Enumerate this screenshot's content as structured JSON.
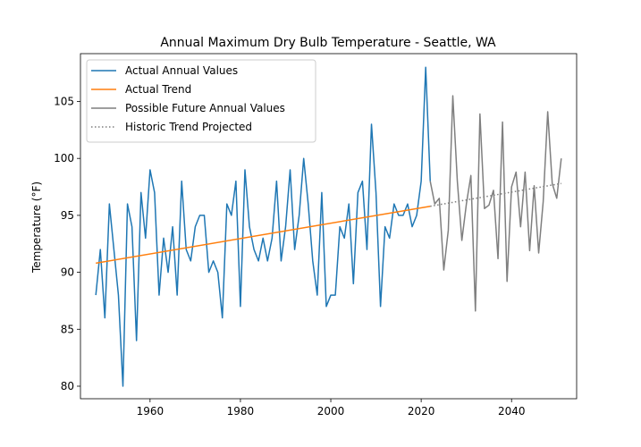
{
  "chart_data": {
    "type": "line",
    "title": "Annual Maximum Dry Bulb Temperature - Seattle, WA",
    "xlabel": "",
    "ylabel": "Temperature (°F)",
    "xlim": [
      1944.6,
      2054.4
    ],
    "ylim": [
      78.9,
      109.2
    ],
    "xticks": [
      1960,
      1980,
      2000,
      2020,
      2040
    ],
    "yticks": [
      80,
      85,
      90,
      95,
      100,
      105
    ],
    "grid": false,
    "legend_position": "top-left",
    "series": [
      {
        "name": "Actual Annual Values",
        "color": "#1f77b4",
        "style": "solid",
        "x": [
          1948,
          1949,
          1950,
          1951,
          1952,
          1953,
          1954,
          1955,
          1956,
          1957,
          1958,
          1959,
          1960,
          1961,
          1962,
          1963,
          1964,
          1965,
          1966,
          1967,
          1968,
          1969,
          1970,
          1971,
          1972,
          1973,
          1974,
          1975,
          1976,
          1977,
          1978,
          1979,
          1980,
          1981,
          1982,
          1983,
          1984,
          1985,
          1986,
          1987,
          1988,
          1989,
          1990,
          1991,
          1992,
          1993,
          1994,
          1995,
          1996,
          1997,
          1998,
          1999,
          2000,
          2001,
          2002,
          2003,
          2004,
          2005,
          2006,
          2007,
          2008,
          2009,
          2010,
          2011,
          2012,
          2013,
          2014,
          2015,
          2016,
          2017,
          2018,
          2019,
          2020,
          2021,
          2022
        ],
        "y": [
          88,
          92,
          86,
          96,
          92,
          88,
          80,
          96,
          94,
          84,
          97,
          93,
          99,
          97,
          88,
          93,
          90,
          94,
          88,
          98,
          92,
          91,
          94,
          95,
          95,
          90,
          91,
          90,
          86,
          96,
          95,
          98,
          87,
          99,
          94,
          92,
          91,
          93,
          91,
          93,
          98,
          91,
          94,
          99,
          92,
          95,
          100,
          96,
          91,
          88,
          97,
          87,
          88,
          88,
          94,
          93,
          96,
          89,
          97,
          98,
          92,
          103,
          97,
          87,
          94,
          93,
          96,
          95,
          95,
          96,
          94,
          95,
          98,
          108,
          98
        ]
      },
      {
        "name": "Actual Trend",
        "color": "#ff7f0e",
        "style": "solid",
        "x": [
          1948,
          2022
        ],
        "y": [
          90.8,
          95.8
        ]
      },
      {
        "name": "Possible Future Annual Values",
        "color": "#7f7f7f",
        "style": "solid",
        "x": [
          2022,
          2023,
          2024,
          2025,
          2026,
          2027,
          2028,
          2029,
          2030,
          2031,
          2032,
          2033,
          2034,
          2035,
          2036,
          2037,
          2038,
          2039,
          2040,
          2041,
          2042,
          2043,
          2044,
          2045,
          2046,
          2047,
          2048,
          2049,
          2050,
          2051
        ],
        "y": [
          98,
          96,
          96.5,
          90.2,
          93.7,
          105.5,
          98,
          92.8,
          96,
          98.5,
          86.6,
          103.9,
          95.6,
          95.9,
          97.2,
          91.2,
          103.2,
          89.2,
          97.5,
          98.8,
          94,
          98.8,
          91.9,
          97.6,
          91.7,
          96.2,
          104.1,
          97.8,
          96.5,
          100
        ]
      },
      {
        "name": "Historic Trend Projected",
        "color": "#7f7f7f",
        "style": "dotted",
        "x": [
          2022,
          2051
        ],
        "y": [
          95.8,
          97.8
        ]
      }
    ]
  }
}
